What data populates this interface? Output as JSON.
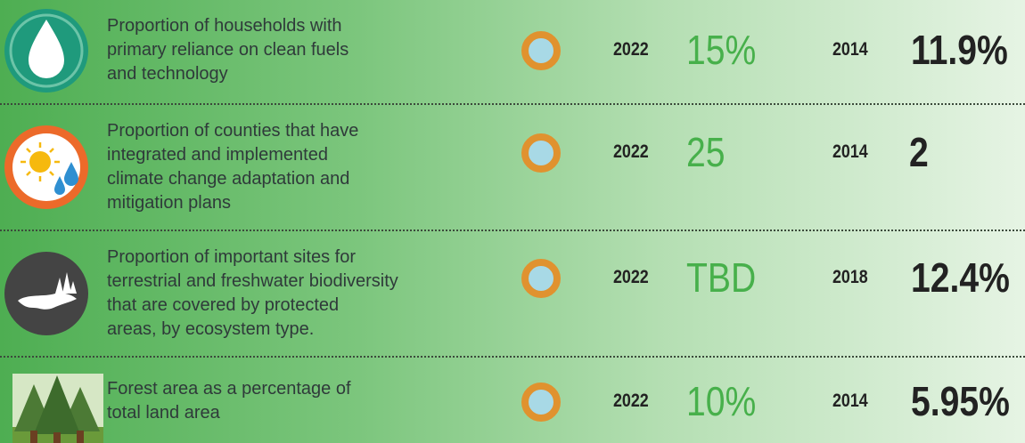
{
  "rows": [
    {
      "description": [
        "Proportion of households with",
        "primary reliance on clean fuels",
        "and technology"
      ],
      "target_year": "2022",
      "target_value": "15%",
      "baseline_year": "2014",
      "baseline_value": "11.9%"
    },
    {
      "description": [
        "Proportion of counties that have",
        "integrated and implemented",
        "climate change adaptation and",
        "mitigation plans"
      ],
      "target_year": "2022",
      "target_value": "25",
      "baseline_year": "2014",
      "baseline_value": "2"
    },
    {
      "description": [
        "Proportion of important sites for",
        "terrestrial and freshwater biodiversity",
        "that are covered by protected",
        "areas, by ecosystem type."
      ],
      "target_year": "2022",
      "target_value": "TBD",
      "baseline_year": "2018",
      "baseline_value": "12.4%"
    },
    {
      "description": [
        "Forest area as a percentage of",
        "total land area"
      ],
      "target_year": "2022",
      "target_value": "10%",
      "baseline_year": "2014",
      "baseline_value": "5.95%"
    }
  ]
}
